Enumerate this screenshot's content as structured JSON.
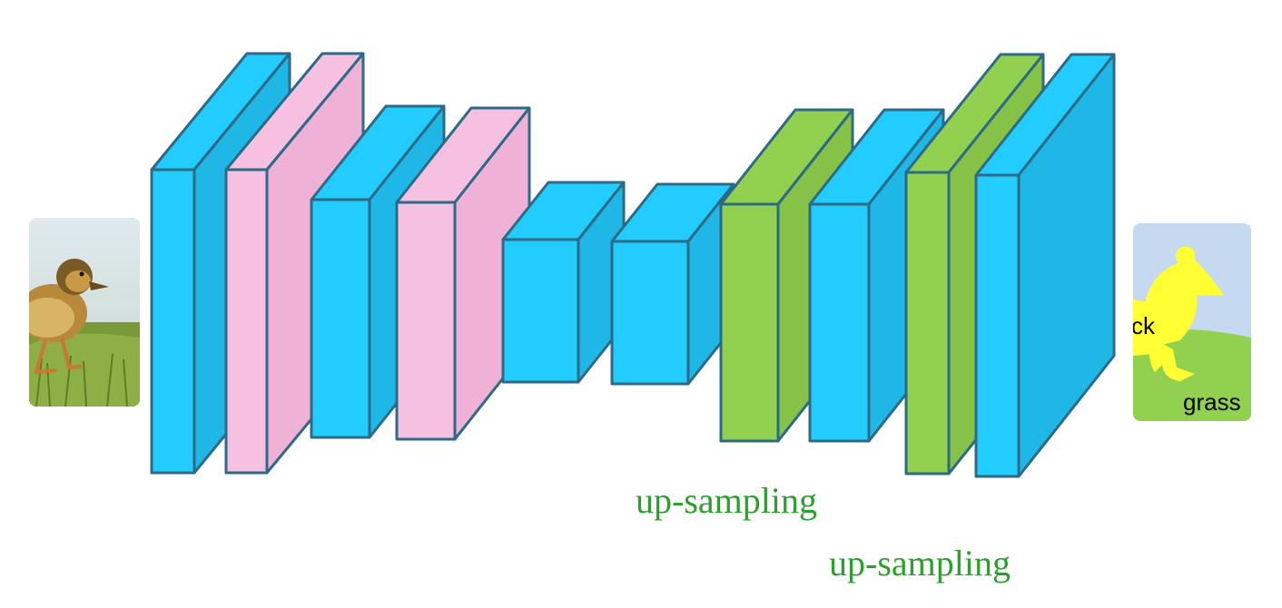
{
  "diagram": {
    "title": "",
    "colors": {
      "conv": "#22ccff",
      "pool": "#f6c0e0",
      "upsample": "#92d050",
      "stroke": "#2c6a86",
      "annotation": "#2ca02c"
    },
    "layers": [
      {
        "name": "conv-1",
        "kind": "conv"
      },
      {
        "name": "pool-1",
        "kind": "pool"
      },
      {
        "name": "conv-2",
        "kind": "conv"
      },
      {
        "name": "pool-2",
        "kind": "pool"
      },
      {
        "name": "conv-3",
        "kind": "conv"
      },
      {
        "name": "conv-4",
        "kind": "conv"
      },
      {
        "name": "upsample-1",
        "kind": "upsample"
      },
      {
        "name": "conv-5",
        "kind": "conv"
      },
      {
        "name": "upsample-2",
        "kind": "upsample"
      },
      {
        "name": "conv-6",
        "kind": "conv"
      }
    ],
    "annotations": {
      "upsampling_1": "up-sampling",
      "upsampling_2": "up-sampling"
    },
    "input_image": {
      "subject": "duckling on grass"
    },
    "output_segmentation": {
      "label_duck_partial": "ck",
      "label_grass": "grass"
    }
  }
}
